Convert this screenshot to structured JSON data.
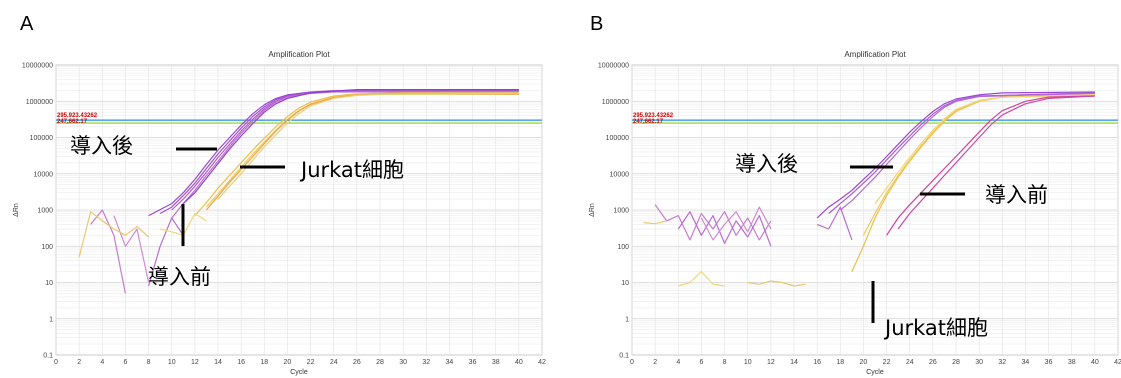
{
  "chart_data": [
    {
      "panel_label": "A",
      "type": "line",
      "title": "Amplification Plot",
      "xlabel": "Cycle",
      "ylabel": "ΔRn",
      "yscale": "log",
      "xlim": [
        0,
        42
      ],
      "ylim": [
        0.1,
        10000000
      ],
      "x_ticks": [
        0,
        2,
        4,
        6,
        8,
        10,
        12,
        14,
        16,
        18,
        20,
        22,
        24,
        26,
        28,
        30,
        32,
        34,
        36,
        38,
        40,
        42
      ],
      "y_ticks": [
        "0.1",
        "1",
        "10",
        "100",
        "1000",
        "10000",
        "100000",
        "1000000",
        "10000000"
      ],
      "grid": true,
      "threshold_labels": [
        "295,923.43262",
        "247,662.17"
      ],
      "thresholds": [
        {
          "y": 300000,
          "color": "#5aa7e8"
        },
        {
          "y": 250000,
          "color": "#a9e05a"
        }
      ],
      "annotations": [
        {
          "text": "導入後"
        },
        {
          "text": "Jurkat細胞"
        },
        {
          "text": "導入前"
        }
      ],
      "series": [
        {
          "group": "post",
          "color": "#9a46d6",
          "x": [
            8,
            10,
            11,
            12,
            13,
            14,
            15,
            16,
            17,
            18,
            19,
            20,
            22,
            24,
            26,
            28,
            30,
            40
          ],
          "y": [
            700,
            1500,
            3000,
            7000,
            18000,
            45000,
            100000,
            220000,
            450000,
            800000,
            1200000,
            1500000,
            1800000,
            1950000,
            2000000,
            2000000,
            2000000,
            2000000
          ]
        },
        {
          "group": "post",
          "color": "#a24fd0",
          "x": [
            9,
            10,
            11,
            12,
            13,
            14,
            15,
            16,
            17,
            18,
            19,
            20,
            22,
            24,
            26,
            28,
            40
          ],
          "y": [
            800,
            1200,
            2500,
            5500,
            14000,
            35000,
            80000,
            180000,
            380000,
            700000,
            1100000,
            1400000,
            1750000,
            1900000,
            1950000,
            2000000,
            2000000
          ]
        },
        {
          "group": "post",
          "color": "#b05cc8",
          "x": [
            10,
            11,
            12,
            13,
            14,
            15,
            16,
            17,
            18,
            19,
            20,
            22,
            24,
            26,
            40
          ],
          "y": [
            1000,
            2000,
            4500,
            11000,
            28000,
            65000,
            150000,
            320000,
            620000,
            1000000,
            1350000,
            1700000,
            1850000,
            1900000,
            1900000
          ]
        },
        {
          "group": "post",
          "color": "#c070c6",
          "x": [
            10,
            11,
            12,
            13,
            14,
            15,
            16,
            17,
            18,
            19,
            20,
            22,
            24,
            40
          ],
          "y": [
            600,
            1500,
            3500,
            9000,
            22000,
            55000,
            130000,
            280000,
            560000,
            950000,
            1300000,
            1650000,
            1800000,
            1850000
          ]
        },
        {
          "group": "post",
          "color": "#8c3fd8",
          "x": [
            11,
            12,
            13,
            14,
            15,
            16,
            17,
            18,
            19,
            20,
            22,
            24,
            26,
            40
          ],
          "y": [
            1500,
            3000,
            7500,
            19000,
            48000,
            110000,
            240000,
            500000,
            850000,
            1200000,
            1700000,
            1900000,
            2100000,
            2100000
          ]
        },
        {
          "group": "jurkat",
          "color": "#e8c14a",
          "x": [
            12,
            13,
            14,
            15,
            16,
            17,
            18,
            19,
            20,
            21,
            22,
            24,
            26,
            28,
            30,
            40
          ],
          "y": [
            700,
            1600,
            4000,
            9000,
            20000,
            45000,
            95000,
            200000,
            380000,
            650000,
            950000,
            1400000,
            1600000,
            1650000,
            1700000,
            1700000
          ]
        },
        {
          "group": "jurkat",
          "color": "#efc95a",
          "x": [
            13,
            14,
            15,
            16,
            17,
            18,
            19,
            20,
            21,
            22,
            24,
            26,
            28,
            40
          ],
          "y": [
            1200,
            2800,
            6500,
            15000,
            35000,
            75000,
            160000,
            320000,
            560000,
            850000,
            1300000,
            1550000,
            1600000,
            1600000
          ]
        },
        {
          "group": "jurkat",
          "color": "#f2a04a",
          "x": [
            13,
            14,
            15,
            16,
            17,
            18,
            19,
            20,
            21,
            22,
            24,
            26,
            28,
            40
          ],
          "y": [
            1000,
            2400,
            5800,
            13000,
            30000,
            68000,
            150000,
            300000,
            540000,
            820000,
            1250000,
            1500000,
            1600000,
            1550000
          ]
        },
        {
          "group": "jurkat",
          "color": "#e8d070",
          "x": [
            14,
            15,
            16,
            17,
            18,
            19,
            20,
            21,
            22,
            24,
            26,
            28,
            40
          ],
          "y": [
            2000,
            4500,
            10000,
            24000,
            55000,
            120000,
            250000,
            460000,
            750000,
            1200000,
            1450000,
            1550000,
            1600000
          ]
        },
        {
          "group": "pre",
          "color": "#c77bd0",
          "x": [
            3,
            4,
            5,
            6
          ],
          "y": [
            400,
            1000,
            200,
            5
          ]
        },
        {
          "group": "pre",
          "color": "#d08ad0",
          "x": [
            5,
            6,
            7,
            8
          ],
          "y": [
            700,
            100,
            300,
            10
          ]
        },
        {
          "group": "pre",
          "color": "#b86dd0",
          "x": [
            8,
            9,
            10,
            11
          ],
          "y": [
            8,
            100,
            600,
            200
          ]
        },
        {
          "group": "pre",
          "color": "#e8c870",
          "x": [
            2,
            3,
            4,
            5,
            6,
            7,
            8
          ],
          "y": [
            50,
            900,
            500,
            300,
            200,
            350,
            180
          ]
        },
        {
          "group": "pre",
          "color": "#f0d67a",
          "x": [
            9,
            10,
            11,
            12,
            13
          ],
          "y": [
            300,
            250,
            200,
            800,
            500
          ]
        }
      ]
    },
    {
      "panel_label": "B",
      "type": "line",
      "title": "Amplification Plot",
      "xlabel": "Cycle",
      "ylabel": "ΔRn",
      "yscale": "log",
      "xlim": [
        0,
        42
      ],
      "ylim": [
        0.1,
        10000000
      ],
      "x_ticks": [
        0,
        2,
        4,
        6,
        8,
        10,
        12,
        14,
        16,
        18,
        20,
        22,
        24,
        26,
        28,
        30,
        32,
        34,
        36,
        38,
        40,
        42
      ],
      "y_ticks": [
        "0.1",
        "1",
        "10",
        "100",
        "1000",
        "10000",
        "100000",
        "1000000",
        "10000000"
      ],
      "grid": true,
      "threshold_labels": [
        "295,923.43262",
        "247,662.17"
      ],
      "thresholds": [
        {
          "y": 300000,
          "color": "#5aa7e8"
        },
        {
          "y": 250000,
          "color": "#a9e05a"
        }
      ],
      "annotations": [
        {
          "text": "導入後"
        },
        {
          "text": "導入前"
        },
        {
          "text": "Jurkat細胞"
        }
      ],
      "series": [
        {
          "group": "post",
          "color": "#9a46d6",
          "x": [
            16,
            17,
            18,
            19,
            20,
            21,
            22,
            23,
            24,
            25,
            26,
            27,
            28,
            30,
            32,
            40
          ],
          "y": [
            600,
            1200,
            2000,
            3500,
            7000,
            14000,
            30000,
            65000,
            140000,
            280000,
            520000,
            850000,
            1150000,
            1500000,
            1700000,
            1800000
          ]
        },
        {
          "group": "post",
          "color": "#a85ad0",
          "x": [
            17,
            18,
            19,
            20,
            21,
            22,
            23,
            24,
            25,
            26,
            27,
            28,
            30,
            40
          ],
          "y": [
            800,
            1500,
            2800,
            5500,
            11000,
            24000,
            52000,
            110000,
            230000,
            440000,
            750000,
            1050000,
            1400000,
            1700000
          ]
        },
        {
          "group": "post",
          "color": "#b36ad0",
          "x": [
            18,
            19,
            20,
            21,
            22,
            23,
            24,
            25,
            26,
            27,
            28,
            30,
            40
          ],
          "y": [
            1000,
            1800,
            3800,
            8000,
            18000,
            40000,
            90000,
            190000,
            380000,
            680000,
            1000000,
            1350000,
            1650000
          ]
        },
        {
          "group": "jurkat",
          "color": "#e8c14a",
          "x": [
            19,
            20,
            21,
            22,
            23,
            24,
            25,
            26,
            27,
            28,
            30,
            32,
            40
          ],
          "y": [
            20,
            100,
            600,
            2500,
            8000,
            22000,
            55000,
            130000,
            280000,
            520000,
            1000000,
            1300000,
            1500000
          ]
        },
        {
          "group": "jurkat",
          "color": "#efc95a",
          "x": [
            20,
            21,
            22,
            23,
            24,
            25,
            26,
            27,
            28,
            30,
            32,
            40
          ],
          "y": [
            200,
            800,
            3000,
            9000,
            24000,
            60000,
            140000,
            300000,
            560000,
            1050000,
            1300000,
            1450000
          ]
        },
        {
          "group": "jurkat",
          "color": "#f0d67a",
          "x": [
            21,
            22,
            23,
            24,
            25,
            26,
            27,
            28,
            30,
            32,
            40
          ],
          "y": [
            1500,
            4000,
            11000,
            28000,
            70000,
            160000,
            330000,
            600000,
            1050000,
            1300000,
            1400000
          ]
        },
        {
          "group": "pre",
          "color": "#d0409a",
          "x": [
            22,
            23,
            24,
            25,
            26,
            27,
            28,
            29,
            30,
            31,
            32,
            34,
            36,
            40
          ],
          "y": [
            200,
            600,
            1400,
            3000,
            6500,
            14000,
            30000,
            65000,
            140000,
            300000,
            550000,
            1000000,
            1300000,
            1400000
          ]
        },
        {
          "group": "pre",
          "color": "#c84aa8",
          "x": [
            23,
            24,
            25,
            26,
            27,
            28,
            29,
            30,
            31,
            32,
            34,
            36,
            40
          ],
          "y": [
            300,
            800,
            1800,
            4000,
            9000,
            20000,
            45000,
            100000,
            220000,
            420000,
            850000,
            1200000,
            1400000
          ]
        },
        {
          "group": "pre",
          "color": "#c77bd0",
          "x": [
            2,
            3,
            4,
            5,
            6,
            7,
            8,
            9,
            10,
            11,
            12
          ],
          "y": [
            1400,
            500,
            700,
            150,
            800,
            300,
            900,
            200,
            600,
            150,
            500
          ]
        },
        {
          "group": "pre",
          "color": "#b86dd0",
          "x": [
            4,
            5,
            6,
            7,
            8,
            9,
            10,
            11,
            12
          ],
          "y": [
            300,
            900,
            200,
            700,
            120,
            500,
            180,
            700,
            100
          ]
        },
        {
          "group": "pre",
          "color": "#d08ad0",
          "x": [
            6,
            7,
            8,
            9,
            10,
            11,
            12
          ],
          "y": [
            600,
            150,
            400,
            900,
            250,
            1200,
            300
          ]
        },
        {
          "group": "pre",
          "color": "#e8c870",
          "x": [
            1,
            2,
            3
          ],
          "y": [
            450,
            420,
            500
          ]
        },
        {
          "group": "pre",
          "color": "#f0d67a",
          "x": [
            4,
            5,
            6,
            7,
            8
          ],
          "y": [
            8,
            10,
            20,
            9,
            8
          ]
        },
        {
          "group": "pre",
          "color": "#e8c870",
          "x": [
            10,
            11,
            12,
            13,
            14,
            15
          ],
          "y": [
            10,
            9,
            11,
            10,
            8,
            9
          ]
        },
        {
          "group": "pre",
          "color": "#b86dd0",
          "x": [
            16,
            17,
            18,
            19
          ],
          "y": [
            400,
            300,
            1200,
            150
          ]
        }
      ]
    }
  ]
}
